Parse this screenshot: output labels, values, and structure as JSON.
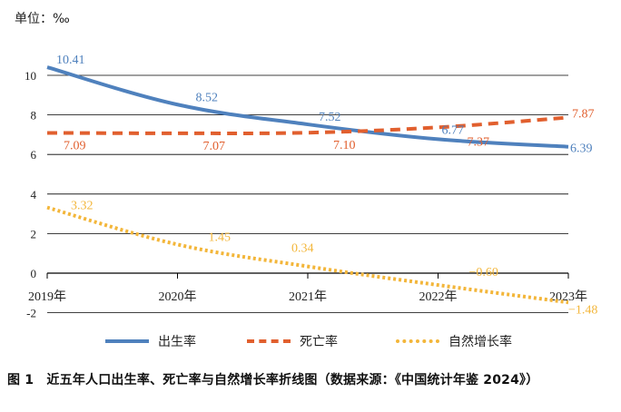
{
  "unit_label": "单位：‰",
  "caption": "图 1　近五年人口出生率、死亡率与自然增长率折线图（数据来源：《中国统计年鉴 2024》）",
  "chart_data": {
    "type": "line",
    "categories": [
      "2019年",
      "2020年",
      "2021年",
      "2022年",
      "2023年"
    ],
    "y_ticks": [
      "10",
      "8",
      "6",
      "4",
      "2",
      "0",
      "-2"
    ],
    "ylim": [
      -2,
      12
    ],
    "grid": true,
    "legend_position": "bottom",
    "series": [
      {
        "name": "出生率",
        "color": "#4f81bd",
        "style": "solid",
        "values": [
          10.41,
          8.52,
          7.52,
          6.77,
          6.39
        ],
        "labels": [
          "10.41",
          "8.52",
          "7.52",
          "6.77",
          "6.39"
        ]
      },
      {
        "name": "死亡率",
        "color": "#e15f2e",
        "style": "dashed",
        "values": [
          7.09,
          7.07,
          7.1,
          7.37,
          7.87
        ],
        "labels": [
          "7.09",
          "7.07",
          "7.10",
          "7.37",
          "7.87"
        ]
      },
      {
        "name": "自然增长率",
        "color": "#f3b63a",
        "style": "dotted",
        "values": [
          3.32,
          1.45,
          0.34,
          -0.6,
          -1.48
        ],
        "labels": [
          "3.32",
          "1.45",
          "0.34",
          "−0.60",
          "−1.48"
        ]
      }
    ]
  }
}
